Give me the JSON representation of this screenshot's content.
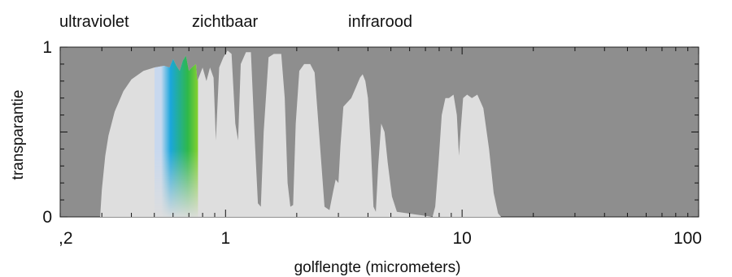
{
  "chart_data": {
    "type": "area",
    "region_labels": [
      "ultraviolet",
      "zichtbaar",
      "infrarood"
    ],
    "xlabel": "golflengte (micrometers)",
    "ylabel": "transparantie",
    "x_scale": "log",
    "xlim": [
      0.2,
      100
    ],
    "ylim": [
      0,
      1
    ],
    "x_tick_labels": [
      {
        "value": 0.2,
        "label": ",2"
      },
      {
        "value": 1,
        "label": "1"
      },
      {
        "value": 10,
        "label": "10"
      },
      {
        "value": 100,
        "label": "100"
      }
    ],
    "y_tick_labels": [
      {
        "value": 0,
        "label": "0"
      },
      {
        "value": 1,
        "label": "1"
      }
    ],
    "colors": {
      "plot_background": "#8e8e8e",
      "transmission_fill": "#dedede",
      "visible_spectrum": [
        "#c8d8ee",
        "#1aa6dc",
        "#2eb84a",
        "#f3ee10",
        "#f2a41e",
        "#e23a22"
      ]
    },
    "series": [
      {
        "values": [
          [
            0.295,
            0.0
          ],
          [
            0.3,
            0.16
          ],
          [
            0.31,
            0.36
          ],
          [
            0.32,
            0.48
          ],
          [
            0.34,
            0.62
          ],
          [
            0.37,
            0.74
          ],
          [
            0.4,
            0.81
          ],
          [
            0.45,
            0.86
          ],
          [
            0.5,
            0.88
          ],
          [
            0.55,
            0.89
          ],
          [
            0.58,
            0.88
          ],
          [
            0.6,
            0.93
          ],
          [
            0.62,
            0.89
          ],
          [
            0.64,
            0.86
          ],
          [
            0.66,
            0.92
          ],
          [
            0.68,
            0.95
          ],
          [
            0.7,
            0.86
          ],
          [
            0.72,
            0.88
          ],
          [
            0.75,
            0.9
          ],
          [
            0.76,
            0.8
          ],
          [
            0.78,
            0.84
          ],
          [
            0.8,
            0.88
          ],
          [
            0.83,
            0.8
          ],
          [
            0.86,
            0.88
          ],
          [
            0.89,
            0.82
          ],
          [
            0.91,
            0.45
          ],
          [
            0.94,
            0.88
          ],
          [
            0.98,
            0.94
          ],
          [
            1.02,
            0.98
          ],
          [
            1.06,
            0.96
          ],
          [
            1.1,
            0.55
          ],
          [
            1.13,
            0.45
          ],
          [
            1.16,
            0.9
          ],
          [
            1.22,
            0.97
          ],
          [
            1.28,
            0.97
          ],
          [
            1.33,
            0.45
          ],
          [
            1.37,
            0.08
          ],
          [
            1.41,
            0.06
          ],
          [
            1.45,
            0.5
          ],
          [
            1.52,
            0.94
          ],
          [
            1.6,
            0.96
          ],
          [
            1.72,
            0.96
          ],
          [
            1.78,
            0.7
          ],
          [
            1.83,
            0.2
          ],
          [
            1.88,
            0.06
          ],
          [
            1.93,
            0.07
          ],
          [
            1.98,
            0.55
          ],
          [
            2.05,
            0.86
          ],
          [
            2.15,
            0.9
          ],
          [
            2.28,
            0.9
          ],
          [
            2.38,
            0.85
          ],
          [
            2.5,
            0.45
          ],
          [
            2.62,
            0.06
          ],
          [
            2.75,
            0.04
          ],
          [
            2.85,
            0.15
          ],
          [
            2.92,
            0.22
          ],
          [
            3.0,
            0.2
          ],
          [
            3.06,
            0.42
          ],
          [
            3.15,
            0.65
          ],
          [
            3.3,
            0.68
          ],
          [
            3.4,
            0.7
          ],
          [
            3.55,
            0.76
          ],
          [
            3.7,
            0.82
          ],
          [
            3.8,
            0.84
          ],
          [
            3.9,
            0.8
          ],
          [
            4.0,
            0.7
          ],
          [
            4.12,
            0.4
          ],
          [
            4.22,
            0.06
          ],
          [
            4.32,
            0.03
          ],
          [
            4.42,
            0.3
          ],
          [
            4.55,
            0.55
          ],
          [
            4.7,
            0.5
          ],
          [
            4.85,
            0.32
          ],
          [
            5.05,
            0.12
          ],
          [
            5.3,
            0.03
          ],
          [
            7.5,
            0.0
          ],
          [
            7.7,
            0.06
          ],
          [
            7.95,
            0.32
          ],
          [
            8.2,
            0.6
          ],
          [
            8.5,
            0.7
          ],
          [
            8.8,
            0.7
          ],
          [
            9.2,
            0.72
          ],
          [
            9.5,
            0.6
          ],
          [
            9.7,
            0.36
          ],
          [
            9.85,
            0.5
          ],
          [
            10.1,
            0.7
          ],
          [
            10.5,
            0.72
          ],
          [
            11.0,
            0.7
          ],
          [
            11.6,
            0.72
          ],
          [
            12.3,
            0.64
          ],
          [
            13.0,
            0.4
          ],
          [
            13.6,
            0.14
          ],
          [
            14.2,
            0.02
          ],
          [
            14.6,
            0.0
          ]
        ]
      }
    ]
  }
}
